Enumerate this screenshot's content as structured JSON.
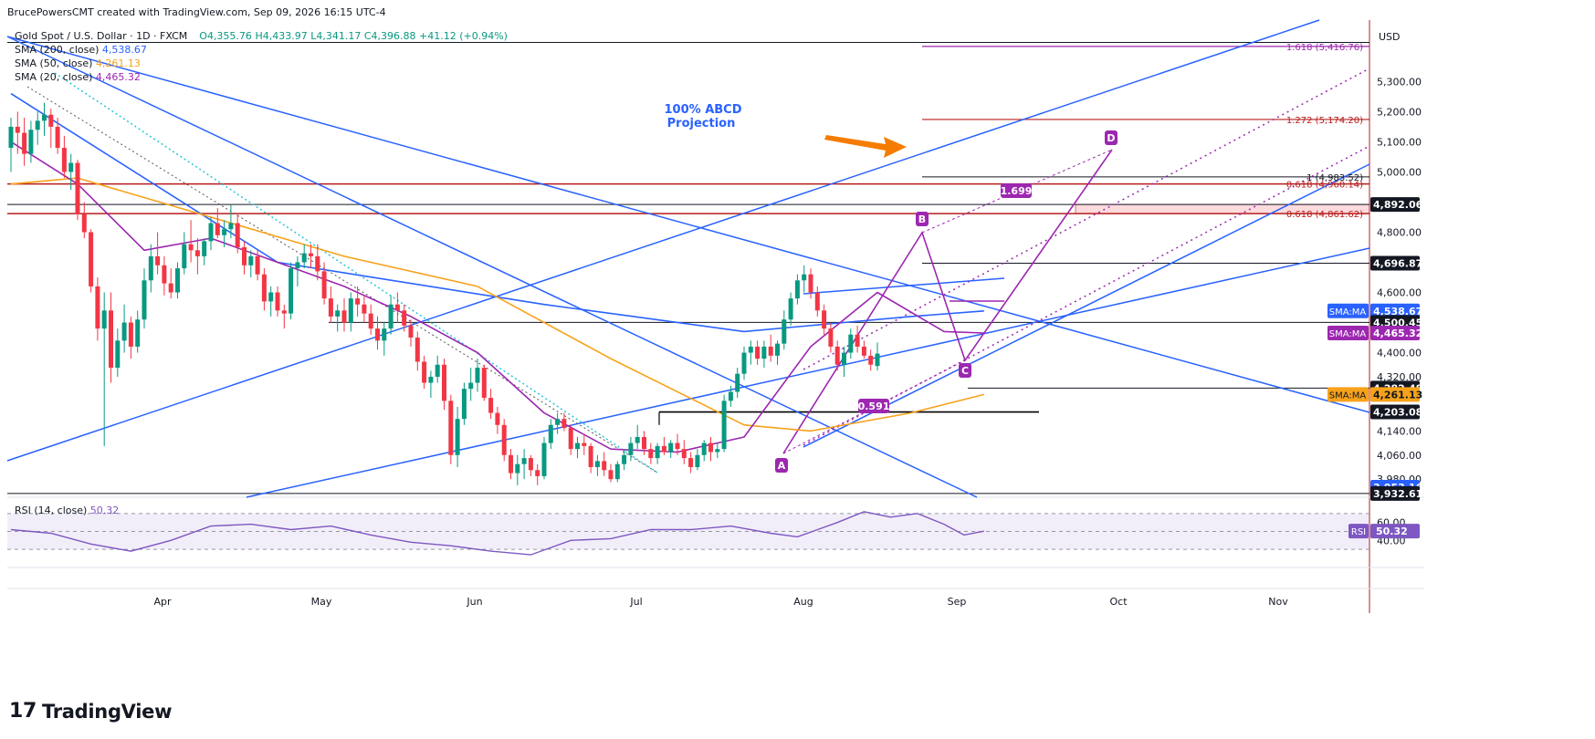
{
  "header": {
    "publisher": "BrucePowersCMT created with TradingView.com, Sep 09, 2026 16:15 UTC-4"
  },
  "symbol": {
    "title": "Gold Spot / U.S. Dollar · 1D · FXCM",
    "o": "O4,355.76",
    "h": "H4,433.97",
    "l": "L4,341.17",
    "c": "C4,396.88",
    "change": "+41.12 (+0.94%)"
  },
  "indicators": [
    {
      "label": "SMA (200, close)",
      "value": "4,538.67",
      "color": "#2962ff"
    },
    {
      "label": "SMA (50, close)",
      "value": "4,261.13",
      "color": "#f7a21b"
    },
    {
      "label": "SMA (20, close)",
      "value": "4,465.32",
      "color": "#9c27b0"
    }
  ],
  "colors": {
    "up": "#089981",
    "down": "#f23645",
    "trend": "#2962ff",
    "sma200": "#2962ff",
    "sma50": "#f7a21b",
    "sma20": "#9c27b0",
    "abcd": "#9c27b0",
    "fib": "#b71c1c",
    "projection": "#2962ff",
    "arrow": "#f57c00",
    "grid": "#e8eaef"
  },
  "annotations": {
    "abcd_title": "100% ABCD",
    "abcd_sub": "Projection",
    "point_a": "A",
    "point_b": "B",
    "point_c": "C",
    "point_d": "D",
    "ratio_1": "1.699",
    "ratio_2": "0.591"
  },
  "fib_labels": [
    {
      "text": "1.618 (5,416.76)",
      "price": 5416.76
    },
    {
      "text": "1.272 (5,174.20)",
      "price": 5174.2
    },
    {
      "text": "1 (4,983.52)",
      "price": 4983.52
    },
    {
      "text": "0.618 (4,960.14)",
      "price": 4960.14
    },
    {
      "text": "0.618 (4,861.62)",
      "price": 4861.62
    }
  ],
  "axis": {
    "currency": "USD",
    "ticks": [
      "5,300.00",
      "5,200.00",
      "5,100.00",
      "5,000.00",
      "4,800.00",
      "4,600.00",
      "4,400.00",
      "4,320.00",
      "4,140.00",
      "4,060.00",
      "3,980.00"
    ],
    "tick_values": [
      5300,
      5200,
      5100,
      5000,
      4800,
      4600,
      4400,
      4320,
      4140,
      4060,
      3980
    ],
    "months": [
      "Apr",
      "May",
      "Jun",
      "Jul",
      "Aug",
      "Sep",
      "Oct",
      "Nov"
    ]
  },
  "price_tags": [
    {
      "text": "4,892.06",
      "price": 4892.06,
      "bg": "#131722",
      "fg": "#ffffff"
    },
    {
      "text": "4,696.87",
      "price": 4696.87,
      "bg": "#131722",
      "fg": "#ffffff"
    },
    {
      "text": "4,538.67",
      "price": 4538.67,
      "bg": "#2962ff",
      "fg": "#ffffff",
      "badge": "SMA:MA"
    },
    {
      "text": "4,500.45",
      "price": 4500.45,
      "bg": "#131722",
      "fg": "#ffffff"
    },
    {
      "text": "4,465.32",
      "price": 4465.32,
      "bg": "#9c27b0",
      "fg": "#ffffff",
      "badge": "SMA:MA"
    },
    {
      "text": "4,282.48",
      "price": 4282.48,
      "bg": "#131722",
      "fg": "#ffffff"
    },
    {
      "text": "4,261.13",
      "price": 4261.13,
      "bg": "#f7a21b",
      "fg": "#131722",
      "badge": "SMA:MA"
    },
    {
      "text": "4,203.08",
      "price": 4203.08,
      "bg": "#131722",
      "fg": "#ffffff"
    },
    {
      "text": "3,953.16",
      "price": 3953.16,
      "bg": "#2962ff",
      "fg": "#ffffff"
    },
    {
      "text": "3,932.61",
      "price": 3932.61,
      "bg": "#131722",
      "fg": "#ffffff"
    }
  ],
  "rsi": {
    "label": "RSI (14, close)",
    "value": "50.32",
    "badge": "RSI",
    "ticks": [
      "60.00",
      "40.00"
    ],
    "tick_values": [
      60,
      40
    ],
    "upper": 70,
    "lower": 30
  },
  "branding": {
    "name": "TradingView"
  },
  "chart_data": {
    "type": "candlestick",
    "title": "Gold Spot / U.S. Dollar · 1D · FXCM",
    "y_range": [
      3920,
      5480
    ],
    "x_range": [
      "2026-03-06",
      "2026-11-14"
    ],
    "anchor_points": [
      {
        "name": "A",
        "price": 4000
      },
      {
        "name": "B",
        "price": 4680
      },
      {
        "name": "C",
        "price": 4282
      },
      {
        "name": "D",
        "price": 4983
      }
    ],
    "candles": [
      [
        5080,
        5180,
        5000,
        5150
      ],
      [
        5150,
        5200,
        5060,
        5130
      ],
      [
        5130,
        5180,
        5020,
        5060
      ],
      [
        5060,
        5170,
        5030,
        5140
      ],
      [
        5140,
        5200,
        5090,
        5170
      ],
      [
        5170,
        5230,
        5120,
        5190
      ],
      [
        5190,
        5210,
        5080,
        5150
      ],
      [
        5150,
        5180,
        5060,
        5080
      ],
      [
        5080,
        5120,
        4980,
        5000
      ],
      [
        5000,
        5060,
        4940,
        5030
      ],
      [
        5030,
        5040,
        4840,
        4860
      ],
      [
        4860,
        4900,
        4780,
        4800
      ],
      [
        4800,
        4810,
        4600,
        4620
      ],
      [
        4620,
        4650,
        4440,
        4480
      ],
      [
        4480,
        4600,
        4090,
        4540
      ],
      [
        4540,
        4600,
        4300,
        4350
      ],
      [
        4350,
        4480,
        4320,
        4440
      ],
      [
        4440,
        4560,
        4400,
        4500
      ],
      [
        4500,
        4520,
        4380,
        4420
      ],
      [
        4420,
        4540,
        4400,
        4510
      ],
      [
        4510,
        4680,
        4480,
        4640
      ],
      [
        4640,
        4760,
        4600,
        4720
      ],
      [
        4720,
        4800,
        4660,
        4690
      ],
      [
        4690,
        4720,
        4590,
        4630
      ],
      [
        4630,
        4680,
        4580,
        4600
      ],
      [
        4600,
        4700,
        4580,
        4680
      ],
      [
        4680,
        4800,
        4660,
        4760
      ],
      [
        4760,
        4840,
        4700,
        4740
      ],
      [
        4740,
        4780,
        4660,
        4720
      ],
      [
        4720,
        4780,
        4690,
        4770
      ],
      [
        4770,
        4850,
        4740,
        4830
      ],
      [
        4830,
        4880,
        4780,
        4790
      ],
      [
        4790,
        4840,
        4750,
        4810
      ],
      [
        4810,
        4890,
        4780,
        4830
      ],
      [
        4830,
        4860,
        4730,
        4750
      ],
      [
        4750,
        4770,
        4660,
        4690
      ],
      [
        4690,
        4740,
        4650,
        4720
      ],
      [
        4720,
        4740,
        4640,
        4660
      ],
      [
        4660,
        4680,
        4540,
        4570
      ],
      [
        4570,
        4620,
        4520,
        4600
      ],
      [
        4600,
        4620,
        4520,
        4540
      ],
      [
        4540,
        4560,
        4480,
        4530
      ],
      [
        4530,
        4700,
        4510,
        4680
      ],
      [
        4680,
        4720,
        4620,
        4700
      ],
      [
        4700,
        4760,
        4680,
        4730
      ],
      [
        4730,
        4760,
        4680,
        4720
      ],
      [
        4720,
        4760,
        4640,
        4670
      ],
      [
        4670,
        4700,
        4560,
        4580
      ],
      [
        4580,
        4620,
        4500,
        4520
      ],
      [
        4520,
        4560,
        4470,
        4540
      ],
      [
        4540,
        4580,
        4470,
        4500
      ],
      [
        4500,
        4600,
        4470,
        4580
      ],
      [
        4580,
        4620,
        4520,
        4560
      ],
      [
        4560,
        4590,
        4500,
        4530
      ],
      [
        4530,
        4560,
        4460,
        4480
      ],
      [
        4480,
        4520,
        4410,
        4440
      ],
      [
        4440,
        4500,
        4390,
        4480
      ],
      [
        4480,
        4590,
        4460,
        4560
      ],
      [
        4560,
        4600,
        4500,
        4540
      ],
      [
        4540,
        4560,
        4470,
        4490
      ],
      [
        4490,
        4510,
        4420,
        4450
      ],
      [
        4450,
        4470,
        4340,
        4370
      ],
      [
        4370,
        4390,
        4280,
        4300
      ],
      [
        4300,
        4340,
        4250,
        4320
      ],
      [
        4320,
        4390,
        4300,
        4360
      ],
      [
        4360,
        4380,
        4210,
        4240
      ],
      [
        4240,
        4260,
        4030,
        4060
      ],
      [
        4060,
        4220,
        4020,
        4180
      ],
      [
        4180,
        4300,
        4160,
        4280
      ],
      [
        4280,
        4350,
        4240,
        4300
      ],
      [
        4300,
        4380,
        4270,
        4350
      ],
      [
        4350,
        4360,
        4240,
        4250
      ],
      [
        4250,
        4280,
        4180,
        4200
      ],
      [
        4200,
        4220,
        4130,
        4160
      ],
      [
        4160,
        4180,
        4040,
        4060
      ],
      [
        4060,
        4080,
        3980,
        4000
      ],
      [
        4000,
        4060,
        3960,
        4030
      ],
      [
        4030,
        4080,
        3980,
        4050
      ],
      [
        4050,
        4060,
        3990,
        4010
      ],
      [
        4010,
        4030,
        3960,
        3990
      ],
      [
        3990,
        4120,
        3980,
        4100
      ],
      [
        4100,
        4180,
        4080,
        4160
      ],
      [
        4160,
        4200,
        4130,
        4180
      ],
      [
        4180,
        4200,
        4140,
        4150
      ],
      [
        4150,
        4160,
        4060,
        4080
      ],
      [
        4080,
        4120,
        4050,
        4100
      ],
      [
        4100,
        4130,
        4060,
        4090
      ],
      [
        4090,
        4100,
        4000,
        4020
      ],
      [
        4020,
        4060,
        3990,
        4040
      ],
      [
        4040,
        4070,
        3990,
        4010
      ],
      [
        4010,
        4030,
        3970,
        3980
      ],
      [
        3980,
        4040,
        3970,
        4030
      ],
      [
        4030,
        4080,
        4010,
        4060
      ],
      [
        4060,
        4120,
        4040,
        4100
      ],
      [
        4100,
        4160,
        4080,
        4120
      ],
      [
        4120,
        4140,
        4060,
        4080
      ],
      [
        4080,
        4100,
        4030,
        4050
      ],
      [
        4050,
        4100,
        4030,
        4090
      ],
      [
        4090,
        4120,
        4060,
        4070
      ],
      [
        4070,
        4110,
        4050,
        4100
      ],
      [
        4100,
        4130,
        4060,
        4080
      ],
      [
        4080,
        4110,
        4030,
        4050
      ],
      [
        4050,
        4070,
        4000,
        4020
      ],
      [
        4020,
        4080,
        4010,
        4060
      ],
      [
        4060,
        4110,
        4040,
        4100
      ],
      [
        4100,
        4120,
        4040,
        4070
      ],
      [
        4070,
        4100,
        4050,
        4080
      ],
      [
        4080,
        4260,
        4070,
        4240
      ],
      [
        4240,
        4290,
        4220,
        4270
      ],
      [
        4270,
        4350,
        4250,
        4330
      ],
      [
        4330,
        4420,
        4310,
        4400
      ],
      [
        4400,
        4440,
        4360,
        4420
      ],
      [
        4420,
        4440,
        4360,
        4380
      ],
      [
        4380,
        4440,
        4350,
        4420
      ],
      [
        4420,
        4460,
        4370,
        4390
      ],
      [
        4390,
        4440,
        4360,
        4430
      ],
      [
        4430,
        4540,
        4410,
        4510
      ],
      [
        4510,
        4600,
        4490,
        4580
      ],
      [
        4580,
        4660,
        4560,
        4640
      ],
      [
        4640,
        4690,
        4600,
        4660
      ],
      [
        4660,
        4680,
        4580,
        4600
      ],
      [
        4600,
        4620,
        4520,
        4540
      ],
      [
        4540,
        4560,
        4460,
        4480
      ],
      [
        4480,
        4500,
        4400,
        4420
      ],
      [
        4420,
        4440,
        4340,
        4360
      ],
      [
        4360,
        4420,
        4320,
        4400
      ],
      [
        4400,
        4480,
        4380,
        4460
      ],
      [
        4460,
        4490,
        4400,
        4420
      ],
      [
        4420,
        4440,
        4380,
        4390
      ],
      [
        4390,
        4410,
        4340,
        4360
      ],
      [
        4355.76,
        4433.97,
        4341.17,
        4396.88
      ]
    ],
    "sma200": [
      [
        0,
        5260
      ],
      [
        40,
        4700
      ],
      [
        80,
        4560
      ],
      [
        110,
        4470
      ],
      [
        125,
        4500
      ],
      [
        135,
        4520
      ],
      [
        146,
        4538.67
      ]
    ],
    "sma50": [
      [
        0,
        4960
      ],
      [
        10,
        4980
      ],
      [
        30,
        4850
      ],
      [
        50,
        4720
      ],
      [
        70,
        4620
      ],
      [
        90,
        4380
      ],
      [
        110,
        4160
      ],
      [
        120,
        4140
      ],
      [
        135,
        4200
      ],
      [
        146,
        4261.13
      ]
    ],
    "sma20": [
      [
        0,
        5100
      ],
      [
        10,
        4960
      ],
      [
        20,
        4740
      ],
      [
        30,
        4780
      ],
      [
        40,
        4700
      ],
      [
        50,
        4620
      ],
      [
        60,
        4520
      ],
      [
        70,
        4400
      ],
      [
        80,
        4200
      ],
      [
        90,
        4080
      ],
      [
        100,
        4070
      ],
      [
        110,
        4120
      ],
      [
        120,
        4420
      ],
      [
        130,
        4600
      ],
      [
        140,
        4470
      ],
      [
        146,
        4465.32
      ]
    ],
    "rsi_series": [
      [
        0,
        52
      ],
      [
        6,
        48
      ],
      [
        12,
        36
      ],
      [
        18,
        28
      ],
      [
        24,
        40
      ],
      [
        30,
        56
      ],
      [
        36,
        58
      ],
      [
        42,
        52
      ],
      [
        48,
        56
      ],
      [
        54,
        46
      ],
      [
        60,
        38
      ],
      [
        66,
        34
      ],
      [
        72,
        28
      ],
      [
        78,
        24
      ],
      [
        84,
        40
      ],
      [
        90,
        42
      ],
      [
        96,
        52
      ],
      [
        102,
        52
      ],
      [
        108,
        56
      ],
      [
        114,
        48
      ],
      [
        118,
        44
      ],
      [
        124,
        60
      ],
      [
        128,
        72
      ],
      [
        132,
        66
      ],
      [
        136,
        70
      ],
      [
        140,
        58
      ],
      [
        143,
        46
      ],
      [
        146,
        50.32
      ]
    ]
  }
}
